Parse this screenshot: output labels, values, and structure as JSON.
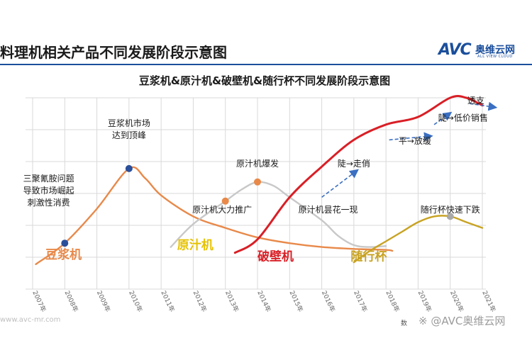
{
  "header": {
    "page_title": "料理机相关产品不同发展阶段示意图",
    "logo_text": "AVC",
    "logo_cn": "奥维云网",
    "logo_sub": "ALL VIEW CLOUD"
  },
  "footer": {
    "url": "www.avc-mr.com",
    "source": "数",
    "watermark": "※ @AVC奥维云网"
  },
  "colors": {
    "soymilk": "#e8894a",
    "juicer": "#c8c8c8",
    "blender": "#d91f26",
    "portable": "#c8a323",
    "arrow": "#3a6fc2",
    "grid": "#d9d9d9"
  },
  "chart_data": {
    "type": "line",
    "title": "豆浆机&原汁机&破壁机&随行杯不同发展阶段示意图",
    "x_ticks": [
      "2007年",
      "2008年",
      "2009年",
      "2010年",
      "2011年",
      "2012年",
      "2013年",
      "2014年",
      "2015年",
      "2016年",
      "2017年",
      "2018年",
      "2019年",
      "2020年",
      "2021年"
    ],
    "xlim": [
      2007,
      2021
    ],
    "ylim": [
      0,
      100
    ],
    "grid": true,
    "series": [
      {
        "name": "豆浆机",
        "color": "#e8894a",
        "points": [
          [
            2007.1,
            13
          ],
          [
            2008,
            24
          ],
          [
            2009,
            42
          ],
          [
            2010,
            63
          ],
          [
            2010.5,
            58
          ],
          [
            2011,
            49
          ],
          [
            2012,
            38
          ],
          [
            2013,
            32
          ],
          [
            2014,
            27
          ],
          [
            2015,
            24
          ],
          [
            2016,
            22
          ],
          [
            2017,
            21
          ],
          [
            2018,
            20.5
          ],
          [
            2018.2,
            20
          ]
        ],
        "markers": [
          [
            2008,
            24
          ],
          [
            2010,
            63
          ]
        ]
      },
      {
        "name": "原汁机",
        "color": "#c8c8c8",
        "points": [
          [
            2011.3,
            22
          ],
          [
            2012,
            34
          ],
          [
            2013,
            46
          ],
          [
            2013.5,
            52
          ],
          [
            2014,
            56
          ],
          [
            2014.5,
            54
          ],
          [
            2015,
            48
          ],
          [
            2016,
            36
          ],
          [
            2016.5,
            28
          ],
          [
            2017,
            23
          ],
          [
            2017.5,
            22
          ],
          [
            2018,
            22.5
          ]
        ],
        "markers": [
          [
            2013,
            46
          ],
          [
            2014,
            56
          ]
        ]
      },
      {
        "name": "破壁机",
        "color": "#d91f26",
        "points": [
          [
            2013.3,
            19
          ],
          [
            2014,
            26
          ],
          [
            2015,
            48
          ],
          [
            2016,
            64
          ],
          [
            2017,
            78
          ],
          [
            2018,
            86
          ],
          [
            2019,
            90
          ],
          [
            2020,
            100
          ],
          [
            2020.5,
            100
          ],
          [
            2021,
            96
          ]
        ]
      },
      {
        "name": "随行杯",
        "color": "#c8a323",
        "points": [
          [
            2017,
            14
          ],
          [
            2017.5,
            20
          ],
          [
            2018,
            25
          ],
          [
            2018.5,
            30
          ],
          [
            2019,
            35
          ],
          [
            2019.5,
            38
          ],
          [
            2020,
            38
          ],
          [
            2020.5,
            35
          ],
          [
            2021,
            32
          ]
        ],
        "markers": [
          [
            2020,
            38
          ]
        ]
      }
    ],
    "annotations": [
      {
        "lines": [
          "三聚氰胺问题",
          "导致市场崛起",
          "刺激性消费"
        ],
        "x": 2007.5,
        "y": 50
      },
      {
        "lines": [
          "豆浆机市场",
          "达到顶峰"
        ],
        "x": 2010,
        "y": 82
      },
      {
        "lines": [
          "原汁机大力推广"
        ],
        "x": 2012.9,
        "y": 40
      },
      {
        "lines": [
          "原汁机爆发"
        ],
        "x": 2014,
        "y": 64
      },
      {
        "lines": [
          "原汁机昙花一现"
        ],
        "x": 2016.2,
        "y": 40
      },
      {
        "lines": [
          "陡→走俏"
        ],
        "x": 2017,
        "y": 64
      },
      {
        "lines": [
          "平→放缓"
        ],
        "x": 2018.9,
        "y": 76
      },
      {
        "lines": [
          "陡→低价销售"
        ],
        "x": 2020.4,
        "y": 88
      },
      {
        "lines": [
          "透支"
        ],
        "x": 2020.8,
        "y": 97
      },
      {
        "lines": [
          "随行杯快速下跌"
        ],
        "x": 2020,
        "y": 40
      }
    ],
    "arrows": [
      {
        "from": [
          2016,
          48
        ],
        "to": [
          2017.1,
          62
        ]
      },
      {
        "from": [
          2018.1,
          78
        ],
        "to": [
          2019.4,
          80
        ]
      },
      {
        "from": [
          2019.5,
          86
        ],
        "to": [
          2020,
          92
        ]
      },
      {
        "from": [
          2020.6,
          97
        ],
        "to": [
          2021.4,
          95
        ]
      }
    ],
    "legend_labels": [
      {
        "text": "豆浆机",
        "color": "#e8894a",
        "x": 2007.4,
        "y": 16
      },
      {
        "text": "原汁机",
        "color": "#e6c200",
        "x": 2011.5,
        "y": 21
      },
      {
        "text": "破壁机",
        "color": "#d91f26",
        "x": 2014,
        "y": 15
      },
      {
        "text": "随行杯",
        "color": "#c8a323",
        "x": 2016.9,
        "y": 15
      }
    ]
  }
}
